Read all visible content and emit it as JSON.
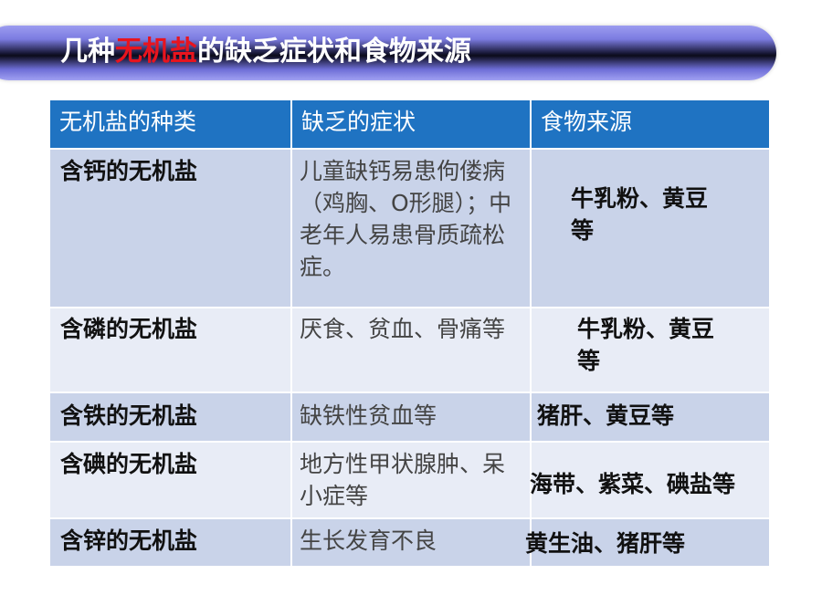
{
  "title": {
    "prefix": "几种",
    "highlight": "无机盐",
    "suffix": "的缺乏症状和食物来源"
  },
  "colors": {
    "header": "#1f73c2",
    "highlight": "#e8141e",
    "row_dark": "#c9d3e9",
    "row_light": "#e8ecf6"
  },
  "table": {
    "headers": [
      "无机盐的种类",
      "缺乏的症状",
      "食物来源"
    ],
    "rows": [
      {
        "type": "含钙的无机盐",
        "symptoms": "儿童缺钙易患佝偻病（鸡胸、O形腿）；中老年人易患骨质疏松症。",
        "food": "牛乳粉、黄豆等"
      },
      {
        "type": "含磷的无机盐",
        "symptoms": "厌食、贫血、骨痛等",
        "food": "牛乳粉、黄豆等"
      },
      {
        "type": "含铁的无机盐",
        "symptoms": "缺铁性贫血等",
        "food": "猪肝、黄豆等"
      },
      {
        "type": "含碘的无机盐",
        "symptoms": "地方性甲状腺肿、呆小症等",
        "food": "海带、紫菜、碘盐等"
      },
      {
        "type": "含锌的无机盐",
        "symptoms": "生长发育不良",
        "food": "黄生油、猪肝等"
      }
    ]
  }
}
